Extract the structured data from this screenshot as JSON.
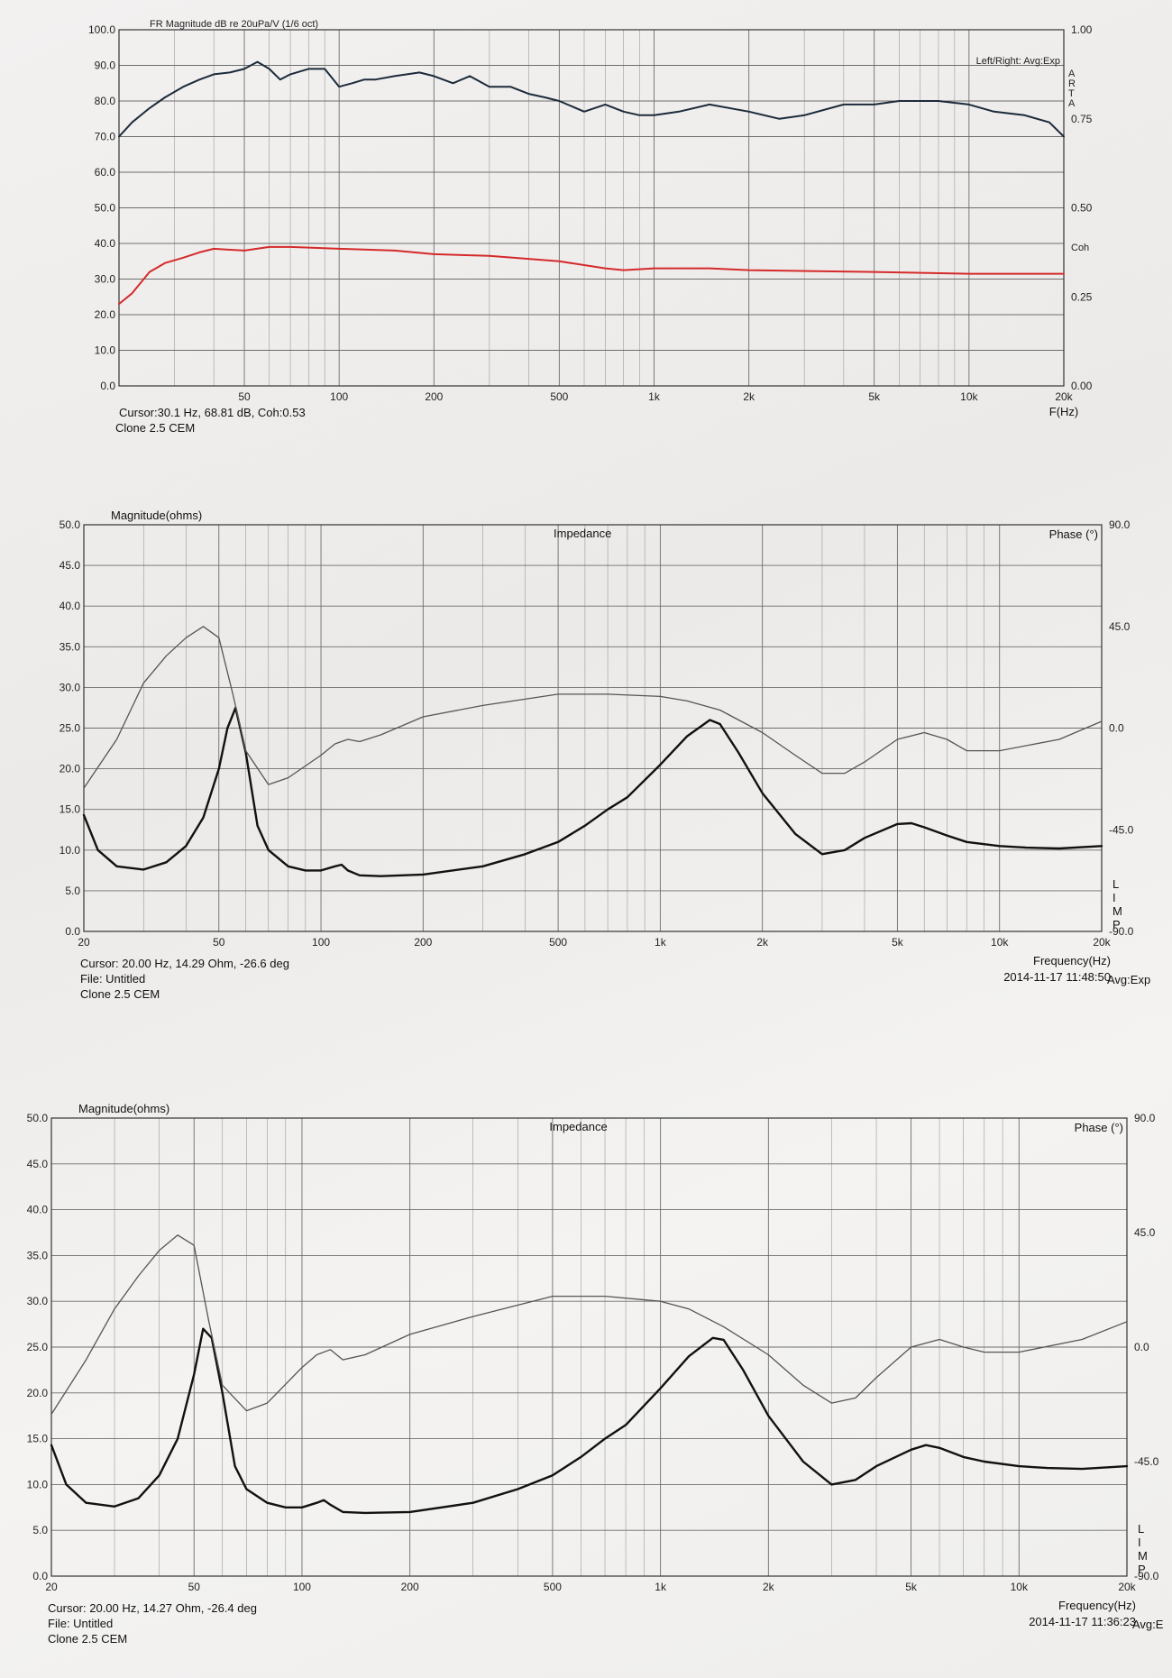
{
  "chart_data": [
    {
      "type": "line",
      "title": "FR Magnitude dB re 20uPa/V (1/6 oct)",
      "legend": "Left/Right: Avg:Exp",
      "side_label": "ARTA",
      "right_axis_title": "Coh",
      "xlabel": "F(Hz)",
      "xscale": "log",
      "xlim": [
        20,
        20000
      ],
      "ylim": [
        0,
        100
      ],
      "right_ylim": [
        0,
        1
      ],
      "x_ticks": [
        "50",
        "100",
        "200",
        "500",
        "1k",
        "2k",
        "5k",
        "10k",
        "20k"
      ],
      "y_ticks": [
        "0.0",
        "10.0",
        "20.0",
        "30.0",
        "40.0",
        "50.0",
        "60.0",
        "70.0",
        "80.0",
        "90.0",
        "100.0"
      ],
      "right_ticks": [
        "0.00",
        "0.25",
        "0.50",
        "0.75",
        "1.00"
      ],
      "cursor": "Cursor:30.1 Hz, 68.81 dB, Coh:0.53",
      "device": "Clone 2.5 CEM",
      "series": [
        {
          "color": "#1c2a3a",
          "x": [
            20,
            22,
            25,
            28,
            32,
            36,
            40,
            45,
            50,
            55,
            60,
            65,
            70,
            80,
            90,
            100,
            110,
            120,
            130,
            150,
            180,
            200,
            230,
            260,
            300,
            350,
            400,
            450,
            500,
            600,
            700,
            800,
            900,
            1000,
            1200,
            1500,
            2000,
            2500,
            3000,
            4000,
            5000,
            6000,
            8000,
            10000,
            12000,
            15000,
            18000,
            20000
          ],
          "y": [
            70,
            74,
            78,
            81,
            84,
            86,
            87.5,
            88,
            89,
            91,
            89,
            86,
            87.5,
            89,
            89,
            84,
            85,
            86,
            86,
            87,
            88,
            87,
            85,
            87,
            84,
            84,
            82,
            81,
            80,
            77,
            79,
            77,
            76,
            76,
            77,
            79,
            77,
            75,
            76,
            79,
            79,
            80,
            80,
            79,
            77,
            76,
            74,
            70
          ]
        },
        {
          "color": "#d42a2a",
          "x": [
            20,
            22,
            25,
            28,
            32,
            36,
            40,
            50,
            60,
            70,
            100,
            150,
            200,
            300,
            500,
            700,
            800,
            1000,
            1500,
            2000,
            5000,
            10000,
            20000
          ],
          "y": [
            23,
            26,
            32,
            34.5,
            36,
            37.5,
            38.5,
            38,
            39,
            39,
            38.5,
            38,
            37,
            36.5,
            35,
            33,
            32.5,
            33,
            33,
            32.5,
            32,
            31.5,
            31.5
          ]
        }
      ]
    },
    {
      "type": "line",
      "title": "Impedance",
      "ylabel": "Magnitude(ohms)",
      "right_axis_title": "Phase (°)",
      "legend": "Avg:Exp",
      "side_label": "LIMP",
      "xlabel": "Frequency(Hz)",
      "xscale": "log",
      "xlim": [
        20,
        20000
      ],
      "ylim": [
        0,
        50
      ],
      "right_ylim": [
        -90,
        90
      ],
      "x_ticks": [
        "20",
        "50",
        "100",
        "200",
        "500",
        "1k",
        "2k",
        "5k",
        "10k",
        "20k"
      ],
      "y_ticks": [
        "0.0",
        "5.0",
        "10.0",
        "15.0",
        "20.0",
        "25.0",
        "30.0",
        "35.0",
        "40.0",
        "45.0",
        "50.0"
      ],
      "right_ticks": [
        "90.0",
        "45.0",
        "0.0",
        "-45.0",
        "-90.0"
      ],
      "cursor": "Cursor: 20.00 Hz, 14.29 Ohm, -26.6 deg",
      "file": "File: Untitled",
      "device": "Clone 2.5 CEM",
      "timestamp": "2014-11-17 11:48:50",
      "series": [
        {
          "name": "Magnitude",
          "color": "#111111",
          "x": [
            20,
            22,
            25,
            30,
            35,
            40,
            45,
            50,
            53,
            56,
            60,
            65,
            70,
            80,
            90,
            100,
            110,
            115,
            120,
            130,
            150,
            200,
            300,
            400,
            500,
            600,
            700,
            800,
            1000,
            1200,
            1400,
            1500,
            1700,
            2000,
            2500,
            3000,
            3500,
            4000,
            5000,
            5500,
            6000,
            7000,
            8000,
            10000,
            12000,
            15000,
            20000
          ],
          "y": [
            14.3,
            10,
            8,
            7.6,
            8.5,
            10.5,
            14,
            20,
            25,
            27.5,
            22,
            13,
            10,
            8,
            7.5,
            7.5,
            8,
            8.2,
            7.5,
            6.9,
            6.8,
            7,
            8,
            9.5,
            11,
            13,
            15,
            16.5,
            20.5,
            24,
            26,
            25.5,
            22,
            17,
            12,
            9.5,
            10,
            11.5,
            13.2,
            13.3,
            12.8,
            11.8,
            11,
            10.5,
            10.3,
            10.2,
            10.5
          ]
        },
        {
          "name": "Phase",
          "color": "#555555",
          "x": [
            20,
            25,
            30,
            35,
            40,
            45,
            50,
            55,
            60,
            70,
            80,
            100,
            110,
            120,
            130,
            150,
            200,
            300,
            500,
            700,
            1000,
            1200,
            1500,
            2000,
            2500,
            3000,
            3500,
            4000,
            5000,
            6000,
            7000,
            8000,
            10000,
            15000,
            20000
          ],
          "y": [
            -26.6,
            -5,
            20,
            32,
            40,
            45,
            40,
            15,
            -10,
            -25,
            -22,
            -12,
            -7,
            -5,
            -6,
            -3,
            5,
            10,
            15,
            15,
            14,
            12,
            8,
            -2,
            -12,
            -20,
            -20,
            -15,
            -5,
            -2,
            -5,
            -10,
            -10,
            -5,
            3
          ]
        }
      ]
    },
    {
      "type": "line",
      "title": "Impedance",
      "ylabel": "Magnitude(ohms)",
      "right_axis_title": "Phase (°)",
      "legend": "Avg:E",
      "side_label": "LIMP",
      "xlabel": "Frequency(Hz)",
      "xscale": "log",
      "xlim": [
        20,
        20000
      ],
      "ylim": [
        0,
        50
      ],
      "right_ylim": [
        -90,
        90
      ],
      "x_ticks": [
        "20",
        "50",
        "100",
        "200",
        "500",
        "1k",
        "2k",
        "5k",
        "10k",
        "20k"
      ],
      "y_ticks": [
        "0.0",
        "5.0",
        "10.0",
        "15.0",
        "20.0",
        "25.0",
        "30.0",
        "35.0",
        "40.0",
        "45.0",
        "50.0"
      ],
      "right_ticks": [
        "90.0",
        "45.0",
        "0.0",
        "-45.0",
        "-90.0"
      ],
      "cursor": "Cursor: 20.00 Hz, 14.27 Ohm, -26.4 deg",
      "file": "File: Untitled",
      "device": "Clone 2.5 CEM",
      "timestamp": "2014-11-17 11:36:23",
      "series": [
        {
          "name": "Magnitude",
          "color": "#111111",
          "x": [
            20,
            22,
            25,
            30,
            35,
            40,
            45,
            50,
            53,
            56,
            60,
            65,
            70,
            80,
            90,
            100,
            110,
            115,
            120,
            130,
            150,
            200,
            300,
            400,
            500,
            600,
            700,
            800,
            1000,
            1200,
            1400,
            1500,
            1700,
            2000,
            2500,
            3000,
            3500,
            4000,
            5000,
            5500,
            6000,
            7000,
            8000,
            10000,
            12000,
            15000,
            20000
          ],
          "y": [
            14.3,
            10,
            8,
            7.6,
            8.5,
            11,
            15,
            22,
            27,
            26,
            20,
            12,
            9.5,
            8,
            7.5,
            7.5,
            8,
            8.3,
            7.8,
            7,
            6.9,
            7,
            8,
            9.5,
            11,
            13,
            15,
            16.5,
            20.5,
            24,
            26,
            25.8,
            22.5,
            17.5,
            12.5,
            10,
            10.5,
            12,
            13.8,
            14.3,
            14,
            13,
            12.5,
            12,
            11.8,
            11.7,
            12
          ]
        },
        {
          "name": "Phase",
          "color": "#555555",
          "x": [
            20,
            25,
            30,
            35,
            40,
            45,
            50,
            55,
            60,
            70,
            80,
            100,
            110,
            120,
            130,
            150,
            200,
            300,
            500,
            700,
            1000,
            1200,
            1500,
            2000,
            2500,
            3000,
            3500,
            4000,
            5000,
            6000,
            7000,
            8000,
            10000,
            15000,
            20000
          ],
          "y": [
            -26.4,
            -5,
            15,
            28,
            38,
            44,
            40,
            10,
            -15,
            -25,
            -22,
            -8,
            -3,
            -1,
            -5,
            -3,
            5,
            12,
            20,
            20,
            18,
            15,
            8,
            -3,
            -15,
            -22,
            -20,
            -12,
            0,
            3,
            0,
            -2,
            -2,
            3,
            10
          ]
        }
      ]
    }
  ]
}
